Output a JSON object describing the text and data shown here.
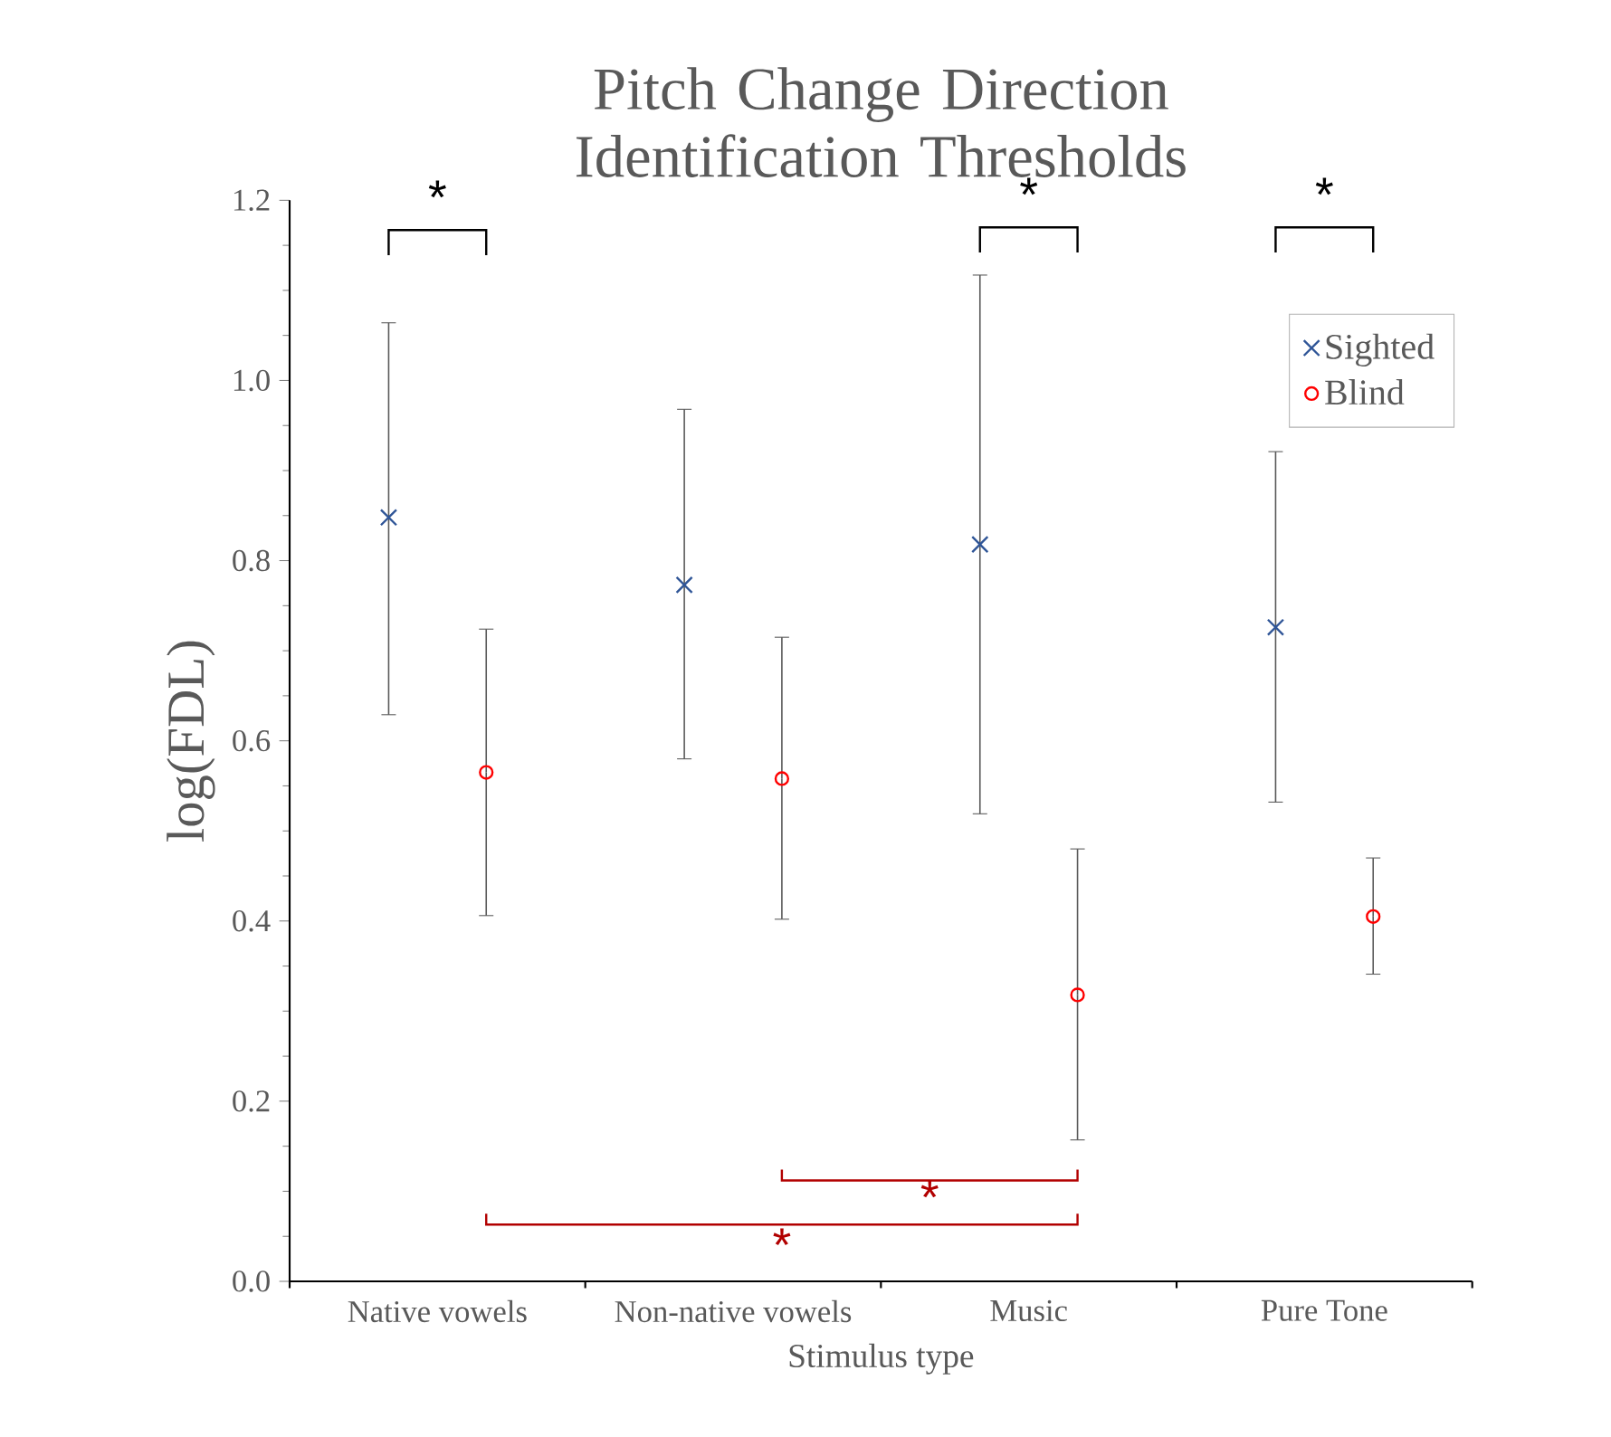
{
  "chart_data": {
    "type": "scatter",
    "title": "Pitch Change Direction Identification Thresholds",
    "xlabel": "Stimulus type",
    "ylabel": "log(FDL)",
    "categories": [
      "Native vowels",
      "Non-native vowels",
      "Music",
      "Pure Tone"
    ],
    "series": [
      {
        "name": "Sighted",
        "color": "#2f5597",
        "marker": "cross",
        "values": [
          0.848,
          0.773,
          0.818,
          0.726
        ],
        "errors": [
          [
            0.629,
            1.064
          ],
          [
            0.58,
            0.968
          ],
          [
            0.519,
            1.117
          ],
          [
            0.532,
            0.921
          ]
        ]
      },
      {
        "name": "Blind",
        "color": "#ff0000",
        "marker": "circle",
        "values": [
          0.565,
          0.558,
          0.318,
          0.405
        ],
        "errors": [
          [
            0.406,
            0.724
          ],
          [
            0.402,
            0.715
          ],
          [
            0.157,
            0.48
          ],
          [
            0.341,
            0.47
          ]
        ]
      }
    ],
    "ylim": [
      0,
      1.2
    ],
    "yticks": [
      {
        "value": 0,
        "label": "0.0"
      },
      0.2,
      0.4,
      0.6,
      0.8,
      {
        "value": 1.0,
        "label": "1.0"
      },
      {
        "value": 1.2,
        "label": "1.2"
      }
    ],
    "annotations": [
      "*",
      "*",
      "*",
      "*",
      "*"
    ],
    "legend": "top right",
    "grid": false
  }
}
